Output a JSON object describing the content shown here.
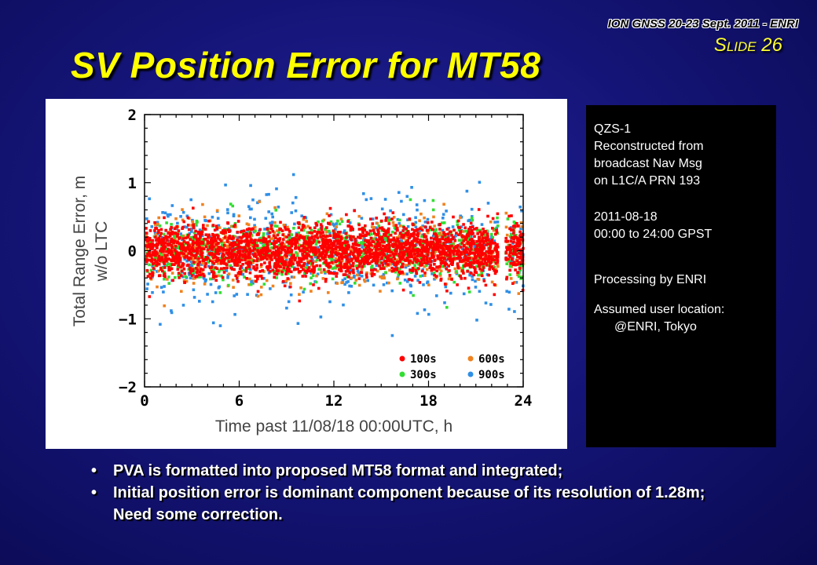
{
  "header": {
    "conference": "ION GNSS 20-23 Sept. 2011 - ENRI",
    "slide_label": "Slide 26"
  },
  "title": "SV Position Error for MT58",
  "chart_data": {
    "type": "scatter",
    "xlabel": "Time past 11/08/18 00:00UTC, h",
    "ylabel_line1": "Total Range Error, m",
    "ylabel_line2": "w/o LTC",
    "xlim": [
      0,
      24
    ],
    "ylim": [
      -2,
      2
    ],
    "xticks": [
      "0",
      "6",
      "12",
      "18",
      "24"
    ],
    "yticks": [
      "2",
      "1",
      "0",
      "−1",
      "−2"
    ],
    "series": [
      {
        "name": "900s",
        "color": "#2f8fe6",
        "spread": 0.85
      },
      {
        "name": "600s",
        "color": "#f0821e",
        "spread": 0.62
      },
      {
        "name": "300s",
        "color": "#33dd33",
        "spread": 0.55
      },
      {
        "name": "100s",
        "color": "#ff0000",
        "spread": 0.45
      }
    ],
    "data_gap_hours": [
      22.4,
      22.9
    ],
    "legend": [
      {
        "label": "100s",
        "color": "#ff0000"
      },
      {
        "label": "600s",
        "color": "#f0821e"
      },
      {
        "label": "300s",
        "color": "#33dd33"
      },
      {
        "label": "900s",
        "color": "#2f8fe6"
      }
    ],
    "legend_position": "bottom-right"
  },
  "info": {
    "sat_lines": [
      "QZS-1",
      "Reconstructed from",
      "broadcast Nav Msg",
      "on L1C/A PRN 193"
    ],
    "date_lines": [
      "2011-08-18",
      "00:00 to 24:00 GPST"
    ],
    "processing": "Processing by ENRI",
    "location_label": "Assumed user location:",
    "location_value": "@ENRI, Tokyo"
  },
  "bullets": [
    "PVA is formatted into proposed MT58 format and integrated;",
    "Initial position error is dominant component because of its resolution of 1.28m; Need some correction."
  ]
}
